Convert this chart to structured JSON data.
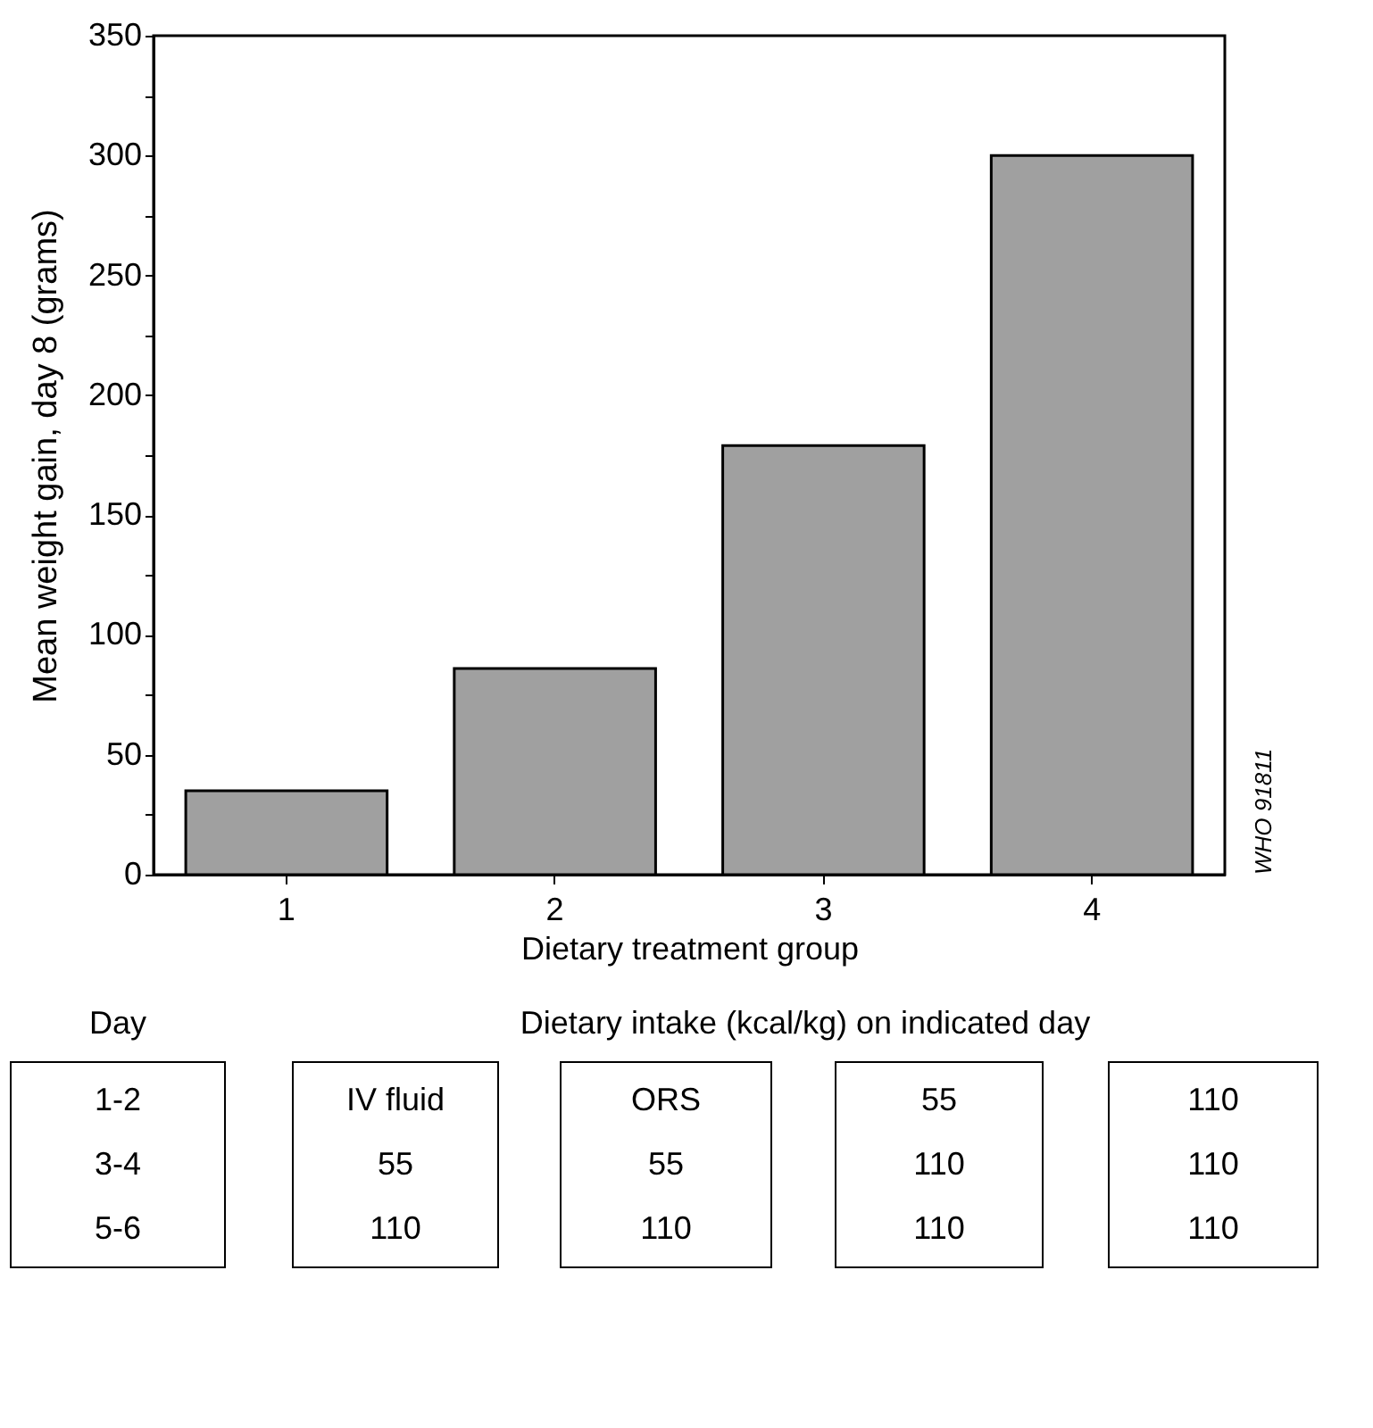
{
  "chart_data": {
    "type": "bar",
    "xlabel": "Dietary treatment group",
    "ylabel": "Mean weight  gain, day 8 (grams)",
    "categories": [
      "1",
      "2",
      "3",
      "4"
    ],
    "values": [
      35,
      86,
      179,
      300
    ],
    "color": "#a0a0a0",
    "ylim": [
      0,
      350
    ],
    "yticks": [
      0,
      {
        "value": 25,
        "label": null
      },
      50,
      {
        "value": 75,
        "label": null
      },
      100,
      {
        "value": 125,
        "label": null
      },
      150,
      {
        "value": 175,
        "label": null
      },
      200,
      {
        "value": 225,
        "label": null
      },
      250,
      {
        "value": 275,
        "label": null
      },
      300,
      {
        "value": 325,
        "label": null
      },
      350
    ],
    "grid": false,
    "annotations": [
      "Day",
      "Dietary intake (kcal/kg) on indicated day",
      "1-2",
      "3-4",
      "5-6",
      "IV fluid",
      "55",
      "110",
      "ORS",
      "55",
      "110",
      "55",
      "110",
      "110",
      "110",
      "110",
      "110",
      "WHO 91811"
    ]
  }
}
